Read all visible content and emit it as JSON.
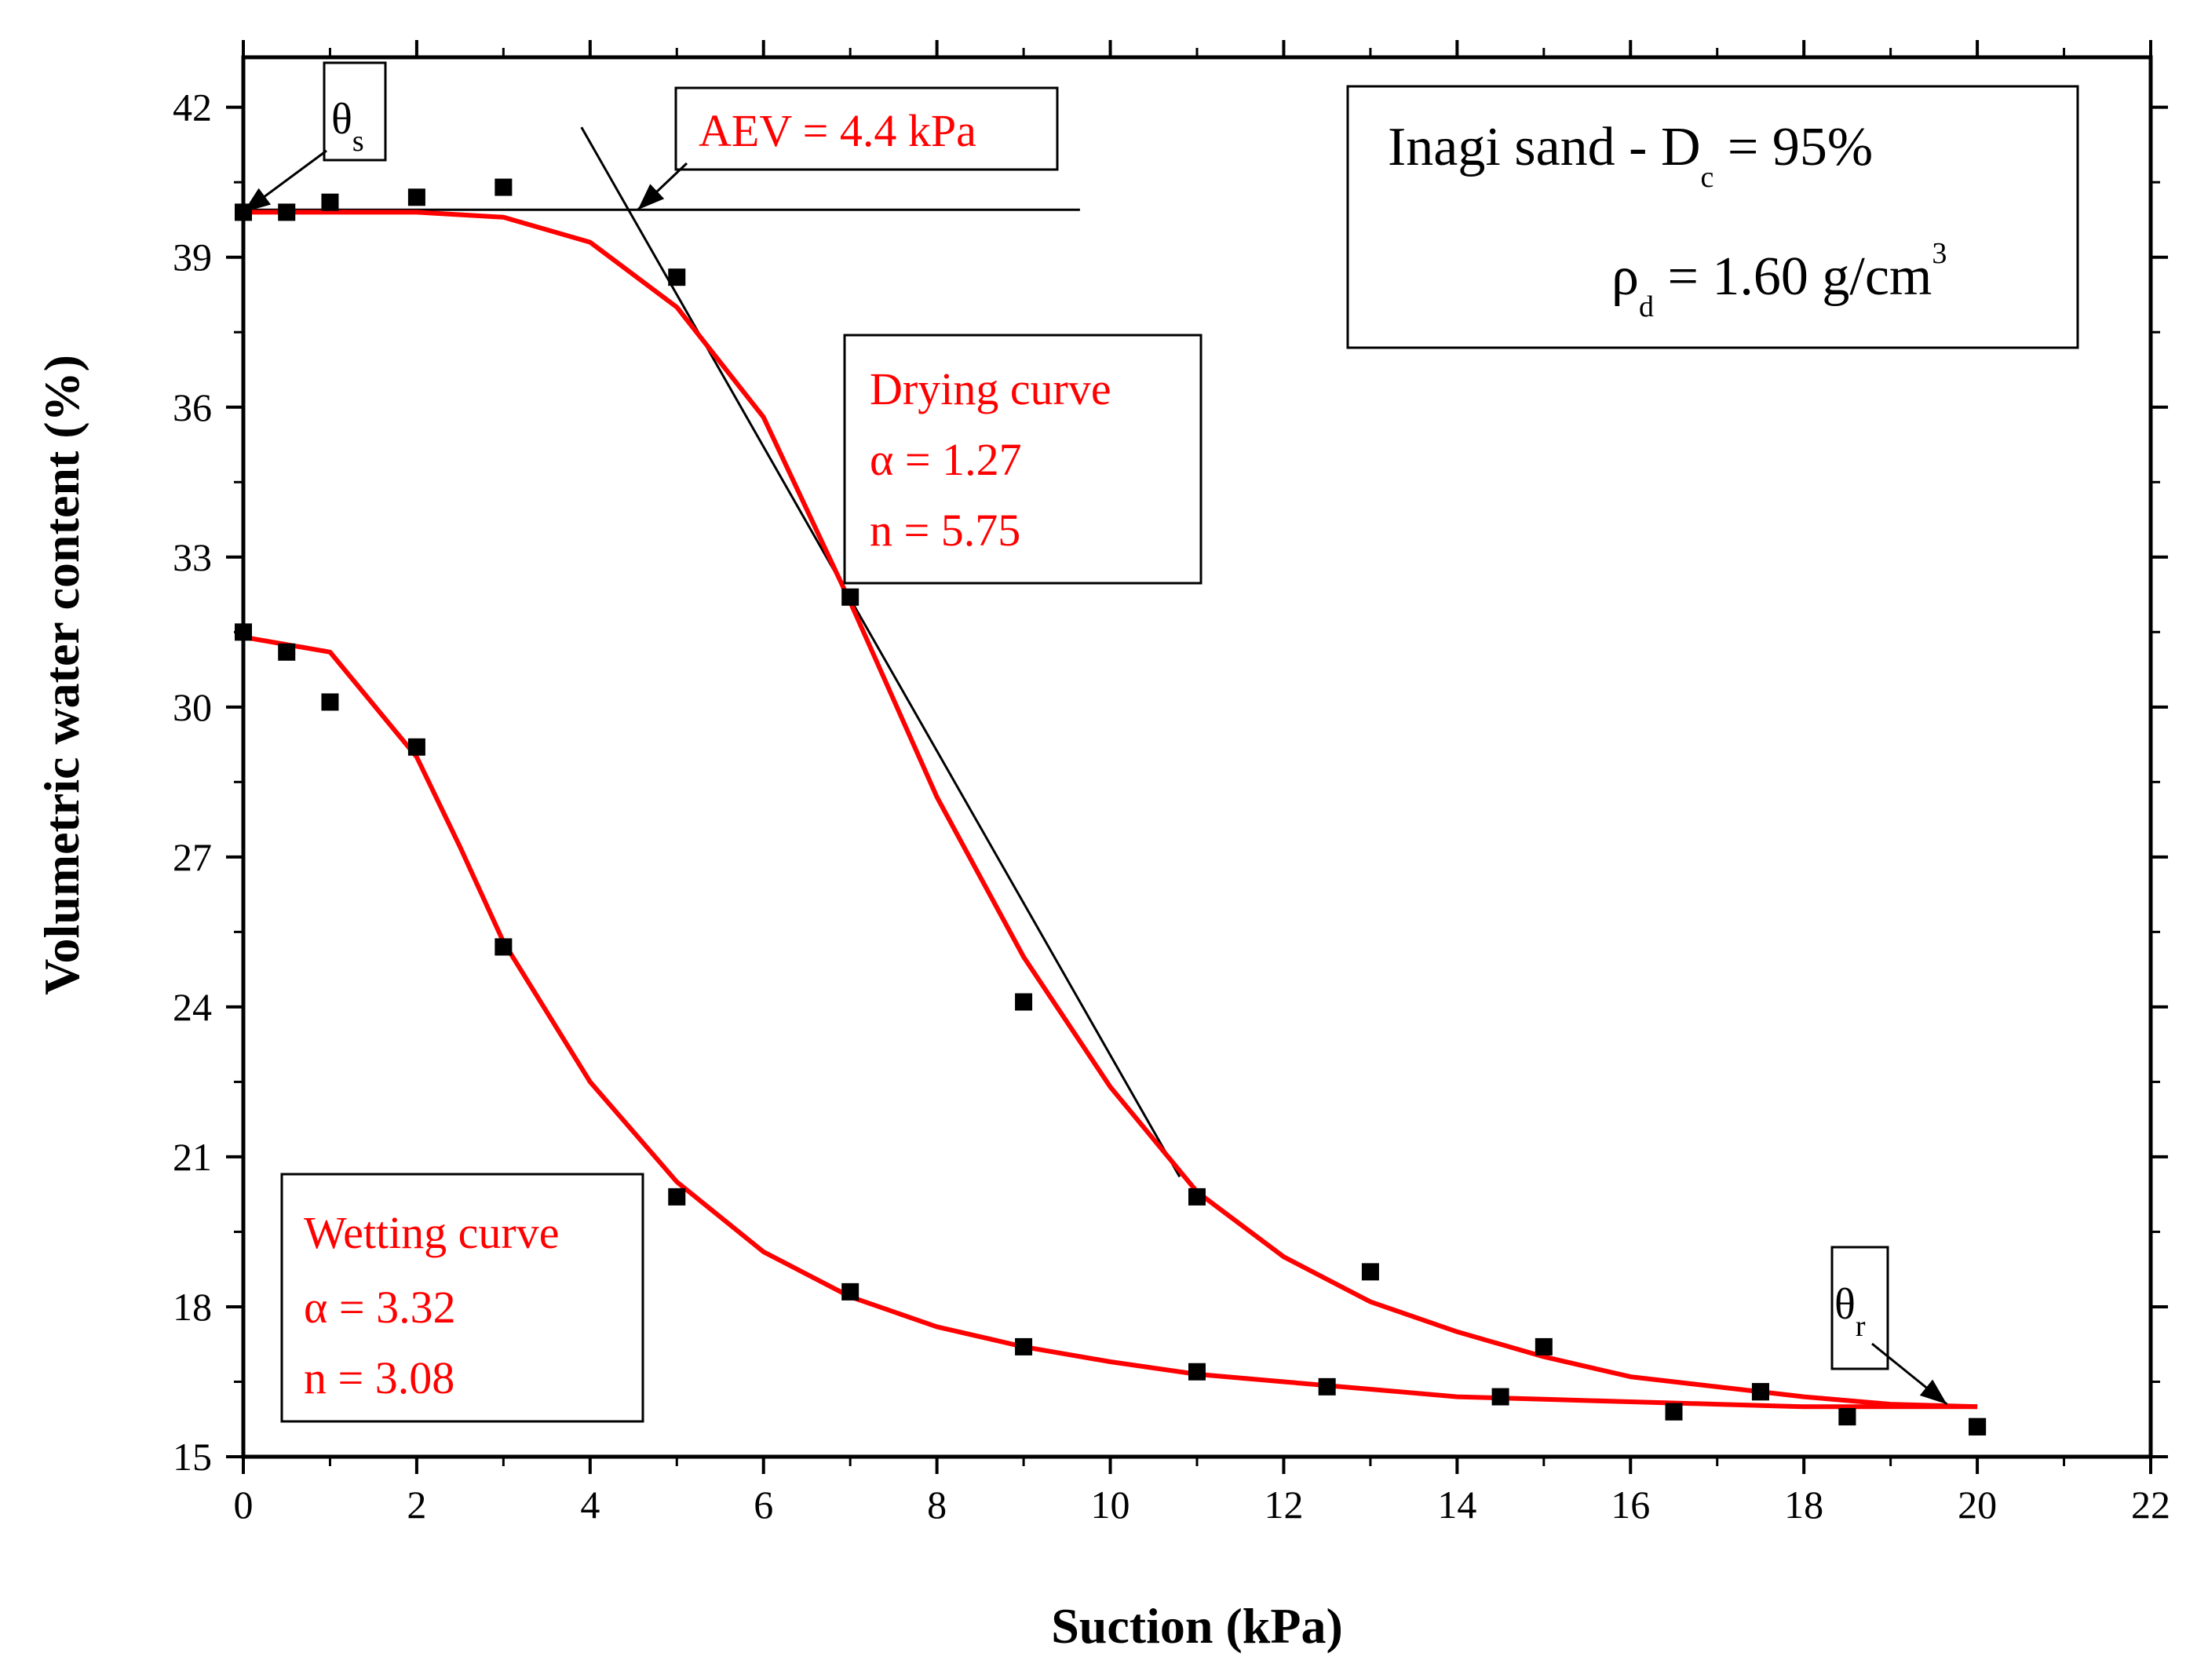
{
  "colors": {
    "fit": "#ff0000",
    "points": "#000000",
    "text_red": "#ff0000",
    "axis": "#000000"
  },
  "chart_data": {
    "type": "scatter",
    "xlabel": "Suction (kPa)",
    "ylabel": "Volumetric water content (%)",
    "xlim": [
      0,
      22
    ],
    "ylim": [
      15,
      43
    ],
    "xticks": [
      0,
      2,
      4,
      6,
      8,
      10,
      12,
      14,
      16,
      18,
      20,
      22
    ],
    "yticks": [
      15,
      18,
      21,
      24,
      27,
      30,
      33,
      36,
      39,
      42
    ],
    "grid": false,
    "series": [
      {
        "name": "Drying curve",
        "kind": "points",
        "x": [
          0,
          0.5,
          1,
          2,
          3,
          5,
          7,
          9,
          11,
          13,
          15,
          16.5,
          17.5,
          18.5,
          20
        ],
        "y": [
          39.9,
          39.9,
          40.1,
          40.2,
          40.4,
          38.6,
          32.2,
          24.1,
          20.2,
          18.7,
          17.2,
          15.9,
          16.3,
          15.8,
          15.6
        ]
      },
      {
        "name": "Wetting curve",
        "kind": "points",
        "x": [
          0,
          0.5,
          1,
          2,
          3,
          5,
          7,
          9,
          11,
          12.5,
          14.5,
          16.5,
          17.5,
          18.5,
          20
        ],
        "y": [
          31.5,
          31.1,
          30.1,
          29.2,
          25.2,
          20.2,
          18.3,
          17.2,
          16.7,
          16.4,
          16.2,
          15.9,
          16.3,
          15.8,
          15.6
        ]
      },
      {
        "name": "Drying curve",
        "kind": "fit",
        "x": [
          0,
          1,
          2,
          3,
          4,
          5,
          6,
          7,
          8,
          9,
          10,
          11,
          12,
          13,
          14,
          15,
          16,
          17,
          18,
          19,
          20
        ],
        "y": [
          39.9,
          39.9,
          39.9,
          39.8,
          39.3,
          38.0,
          35.8,
          32.1,
          28.2,
          25.0,
          22.4,
          20.3,
          19.0,
          18.1,
          17.5,
          17.0,
          16.6,
          16.4,
          16.2,
          16.05,
          16.0
        ]
      },
      {
        "name": "Wetting curve",
        "kind": "fit",
        "x": [
          0,
          1,
          2,
          2.5,
          3,
          4,
          5,
          6,
          7,
          8,
          9,
          10,
          11,
          12,
          13,
          14,
          15,
          16,
          17,
          18,
          19,
          20
        ],
        "y": [
          31.4,
          31.1,
          29.0,
          27.2,
          25.3,
          22.5,
          20.5,
          19.1,
          18.2,
          17.6,
          17.2,
          16.9,
          16.65,
          16.5,
          16.35,
          16.2,
          16.15,
          16.1,
          16.05,
          16.0,
          16.0,
          16.0
        ]
      }
    ],
    "aev_lines": {
      "horizontal": {
        "y": 39.95,
        "x": [
          0,
          9.65
        ]
      },
      "tangent": {
        "x": [
          3.9,
          10.8
        ],
        "y": [
          41.6,
          20.6
        ]
      }
    },
    "annotations": {
      "theta_s": {
        "symbol": "θ",
        "sub": "s",
        "points_to": [
          0,
          39.9
        ]
      },
      "theta_r": {
        "symbol": "θ",
        "sub": "r",
        "points_to": [
          19.65,
          16.05
        ]
      },
      "aev": {
        "text": "AEV = 4.4 kPa",
        "points_to": [
          4.55,
          39.95
        ]
      },
      "drying": {
        "lines": [
          "Drying curve",
          "α = 1.27",
          "n = 5.75"
        ]
      },
      "wetting": {
        "lines": [
          "Wetting curve",
          "α = 3.32",
          "n = 3.08"
        ]
      },
      "info": {
        "line1_main": "Inagi sand - D",
        "line1_sub": "c",
        "line1_rest": " = 95%",
        "line2_main": "ρ",
        "line2_sub": "d",
        "line2_rest": " = 1.60 g/cm",
        "line2_sup": "3"
      }
    }
  }
}
